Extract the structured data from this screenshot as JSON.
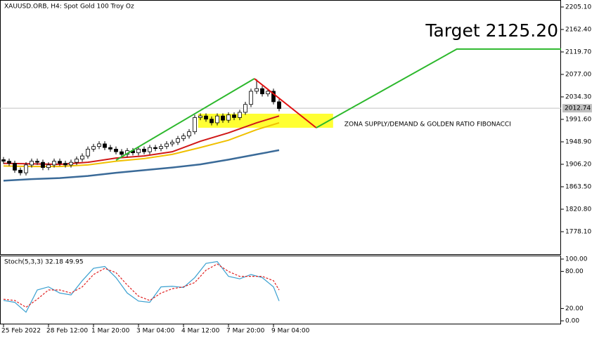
{
  "chart_data": [
    {
      "type": "candlestick",
      "title": "XAUUSD.ORB, H4:  Spot Gold 100 Troy Oz",
      "xlim": [
        -0.625,
        99.125
      ],
      "ylim": [
        1735.4,
        2218.4
      ],
      "yticks": [
        {
          "value": 2205.1,
          "label": "2205.10"
        },
        {
          "value": 2162.4,
          "label": "2162.40"
        },
        {
          "value": 2119.7,
          "label": "2119.70"
        },
        {
          "value": 2077,
          "label": "2077.00"
        },
        {
          "value": 2034.3,
          "label": "2034.30"
        },
        {
          "value": 1991.6,
          "label": "1991.60"
        },
        {
          "value": 1948.9,
          "label": "1948.90"
        },
        {
          "value": 1906.2,
          "label": "1906.20"
        },
        {
          "value": 1863.5,
          "label": "1863.50"
        },
        {
          "value": 1820.8,
          "label": "1820.80"
        },
        {
          "value": 1778.1,
          "label": "1778.10"
        }
      ],
      "open": [
        1915,
        1912,
        1908,
        1895,
        1890,
        1905,
        1912,
        1910,
        1900,
        1905,
        1912,
        1908,
        1905,
        1910,
        1916,
        1922,
        1935,
        1940,
        1945,
        1938,
        1935,
        1930,
        1925,
        1932,
        1928,
        1935,
        1930,
        1938,
        1936,
        1940,
        1945,
        1948,
        1955,
        1960,
        1968,
        1995,
        1998,
        1992,
        1985,
        1998,
        1990,
        2000,
        1995,
        2005,
        2020,
        2045,
        2050,
        2040,
        2045,
        2025
      ],
      "high": [
        1920,
        1917,
        1913,
        1900,
        1910,
        1917,
        1917,
        1915,
        1910,
        1917,
        1917,
        1913,
        1915,
        1921,
        1927,
        1940,
        1945,
        1950,
        1950,
        1943,
        1940,
        1935,
        1937,
        1937,
        1940,
        1940,
        1943,
        1943,
        1945,
        1950,
        1953,
        1960,
        1965,
        1973,
        2000,
        2003,
        2003,
        1997,
        2003,
        2003,
        2005,
        2005,
        2010,
        2025,
        2050,
        2068,
        2055,
        2050,
        2050,
        2030
      ],
      "low": [
        1907,
        1903,
        1890,
        1885,
        1885,
        1900,
        1905,
        1895,
        1895,
        1900,
        1903,
        1900,
        1900,
        1905,
        1911,
        1917,
        1930,
        1935,
        1933,
        1930,
        1925,
        1920,
        1920,
        1923,
        1923,
        1925,
        1925,
        1931,
        1931,
        1935,
        1940,
        1943,
        1950,
        1955,
        1963,
        1990,
        1987,
        1980,
        1980,
        1985,
        1985,
        1990,
        1990,
        2000,
        2015,
        2040,
        2035,
        2035,
        2020,
        2007
      ],
      "close": [
        1912,
        1908,
        1895,
        1890,
        1905,
        1912,
        1910,
        1900,
        1905,
        1912,
        1908,
        1905,
        1910,
        1916,
        1922,
        1935,
        1940,
        1945,
        1938,
        1935,
        1930,
        1925,
        1932,
        1928,
        1935,
        1930,
        1938,
        1936,
        1940,
        1945,
        1948,
        1955,
        1960,
        1968,
        1995,
        1998,
        1992,
        1985,
        1998,
        1990,
        2000,
        1995,
        2005,
        2020,
        2045,
        2050,
        2040,
        2045,
        2025,
        2012
      ],
      "series": [
        {
          "color": "#d01818",
          "x": [
            0,
            5,
            10,
            15,
            20,
            25,
            30,
            35,
            40,
            45,
            49
          ],
          "values": [
            1908,
            1907,
            1906,
            1910,
            1918,
            1922,
            1930,
            1950,
            1966,
            1985,
            1998
          ]
        },
        {
          "color": "#f0c000",
          "x": [
            0,
            5,
            10,
            15,
            20,
            25,
            30,
            35,
            40,
            45,
            49
          ],
          "values": [
            1903,
            1902,
            1902,
            1905,
            1912,
            1917,
            1925,
            1938,
            1952,
            1972,
            1985
          ]
        },
        {
          "color": "#3a6a98",
          "x": [
            0,
            5,
            10,
            15,
            20,
            25,
            30,
            35,
            40,
            45,
            49
          ],
          "values": [
            1875,
            1878,
            1880,
            1884,
            1890,
            1895,
            1900,
            1906,
            1915,
            1925,
            1933
          ]
        }
      ],
      "last_price": {
        "value": 2012.74,
        "label": "2012.74"
      },
      "zone": {
        "x": [
          34.6,
          58.6
        ],
        "y": [
          1975.6,
          2002.3
        ],
        "color": "#ffff33",
        "label": "ZONA SUPPLY/DEMAND & GOLDEN RATIO FIBONACCI"
      },
      "lines": [
        {
          "color": "#2cb82c",
          "x": [
            20,
            44.6
          ],
          "y": [
            1914,
            2069
          ]
        },
        {
          "color": "#e01010",
          "x": [
            44.6,
            55.6
          ],
          "y": [
            2069,
            1975.6
          ]
        },
        {
          "color": "#2cb82c",
          "x": [
            55.6,
            80.6,
            99.125
          ],
          "y": [
            1975.6,
            2125.2,
            2125.2
          ]
        }
      ],
      "target_label": "Target 2125.20"
    },
    {
      "type": "line",
      "title": "Stoch(5,3,3) 32.18 49.95",
      "xlim": [
        -0.625,
        99.125
      ],
      "ylim": [
        0,
        100
      ],
      "yticks": [
        {
          "value": 100,
          "label": "100.00"
        },
        {
          "value": 80,
          "label": "80.00"
        },
        {
          "value": 20,
          "label": "20.00"
        },
        {
          "value": 0,
          "label": "0.00"
        }
      ],
      "xticks": [
        {
          "value": 0,
          "label": "25 Feb 2022"
        },
        {
          "value": 8,
          "label": "28 Feb 12:00"
        },
        {
          "value": 16,
          "label": "1 Mar 20:00"
        },
        {
          "value": 24,
          "label": "3 Mar 04:00"
        },
        {
          "value": 32,
          "label": "4 Mar 12:00"
        },
        {
          "value": 40,
          "label": "7 Mar 20:00"
        },
        {
          "value": 48,
          "label": "9 Mar 04:00"
        }
      ],
      "x": [
        0,
        2,
        4,
        6,
        8,
        10,
        12,
        14,
        16,
        18,
        20,
        22,
        24,
        26,
        28,
        30,
        32,
        34,
        36,
        38,
        40,
        42,
        44,
        46,
        48,
        49
      ],
      "series": [
        {
          "color": "#3aa0d0",
          "dash": false,
          "values": [
            33,
            30,
            14,
            50,
            55,
            45,
            42,
            65,
            85,
            88,
            70,
            45,
            32,
            30,
            55,
            56,
            54,
            70,
            93,
            96,
            72,
            68,
            75,
            70,
            55,
            32.18
          ]
        },
        {
          "color": "#e02020",
          "dash": true,
          "values": [
            35,
            33,
            22,
            35,
            50,
            50,
            45,
            55,
            75,
            85,
            78,
            58,
            40,
            33,
            45,
            52,
            55,
            62,
            82,
            92,
            80,
            72,
            72,
            72,
            65,
            49.95
          ]
        }
      ]
    }
  ]
}
